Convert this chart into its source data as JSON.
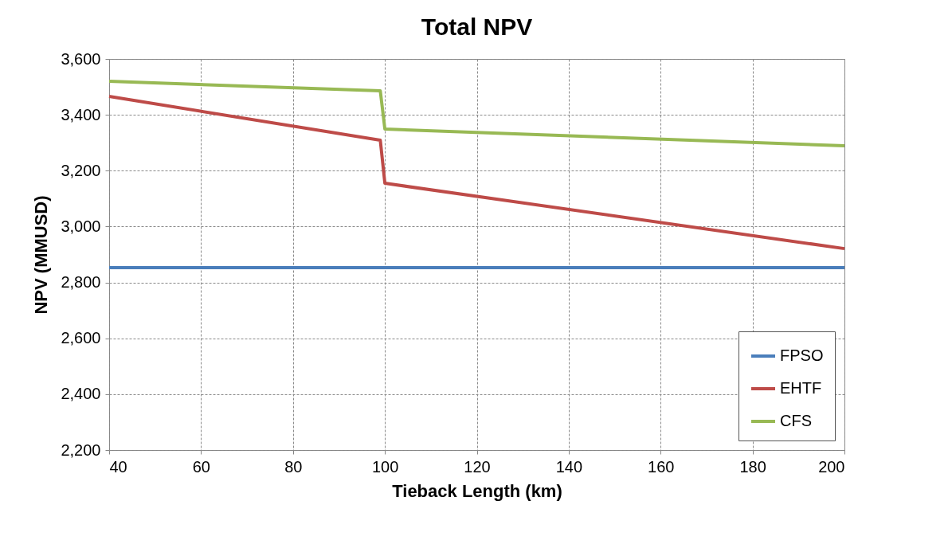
{
  "chart_data": {
    "type": "line",
    "title": "Total NPV",
    "xlabel": "Tieback Length (km)",
    "ylabel": "NPV (MMUSD)",
    "xlim": [
      40,
      200
    ],
    "xticks": [
      40,
      60,
      80,
      100,
      120,
      140,
      160,
      180,
      200
    ],
    "ylim": [
      2200,
      3600
    ],
    "yticks": [
      {
        "value": 2200,
        "label": "2,200"
      },
      {
        "value": 2400,
        "label": "2,400"
      },
      {
        "value": 2600,
        "label": "2,600"
      },
      {
        "value": 2800,
        "label": "2,800"
      },
      {
        "value": 3000,
        "label": "3,000"
      },
      {
        "value": 3200,
        "label": "3,200"
      },
      {
        "value": 3400,
        "label": "3,400"
      },
      {
        "value": 3600,
        "label": "3,600"
      }
    ],
    "grid": true,
    "legend": "bottom right",
    "series": [
      {
        "name": "FPSO",
        "color": "#4a7ebb",
        "x": [
          40,
          99,
          100,
          200
        ],
        "values": [
          2853,
          2853,
          2853,
          2853
        ]
      },
      {
        "name": "EHTF",
        "color": "#be4b48",
        "x": [
          40,
          99,
          100,
          200
        ],
        "values": [
          3466,
          3309,
          3155,
          2921
        ]
      },
      {
        "name": "CFS",
        "color": "#98b954",
        "x": [
          40,
          99,
          100,
          200
        ],
        "values": [
          3520,
          3486,
          3349,
          3289
        ]
      }
    ]
  }
}
